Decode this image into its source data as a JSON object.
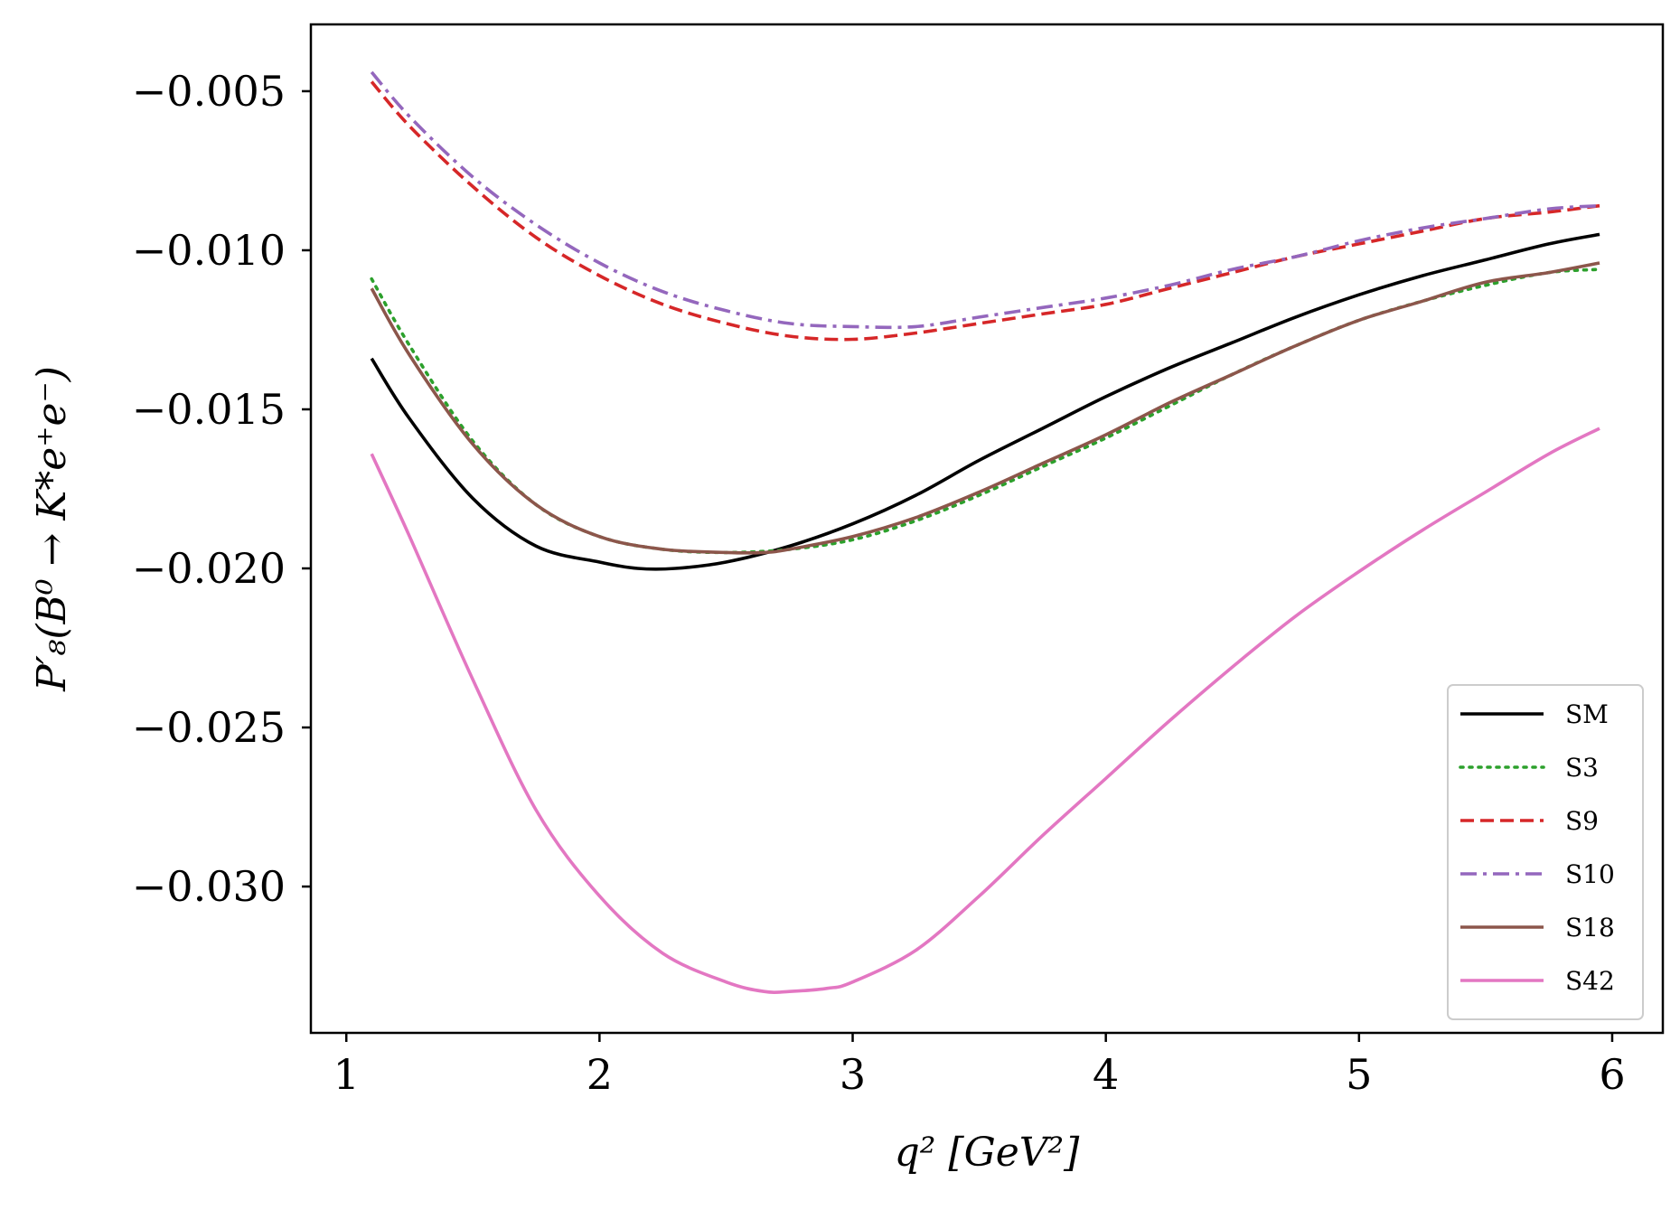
{
  "chart_data": {
    "type": "line",
    "title": "",
    "xlabel": "q² [GeV²]",
    "ylabel": "P′₈(B⁰ → K*e⁺e⁻)",
    "xlim": [
      0.86,
      6.2
    ],
    "ylim": [
      -0.0346,
      -0.0029
    ],
    "xticks": [
      1,
      2,
      3,
      4,
      5,
      6
    ],
    "xtick_labels": [
      "1",
      "2",
      "3",
      "4",
      "5",
      "6"
    ],
    "yticks": [
      -0.005,
      -0.01,
      -0.015,
      -0.02,
      -0.025,
      -0.03
    ],
    "ytick_labels": [
      "−0.005",
      "−0.010",
      "−0.015",
      "−0.020",
      "−0.025",
      "−0.030"
    ],
    "grid": false,
    "legend_position": "lower-right",
    "series": [
      {
        "name": "SM",
        "color": "#000000",
        "dash": "solid",
        "x": [
          1.1,
          1.25,
          1.5,
          1.75,
          2.0,
          2.15,
          2.3,
          2.5,
          2.75,
          3.0,
          3.25,
          3.5,
          3.75,
          4.0,
          4.25,
          4.5,
          4.75,
          5.0,
          5.25,
          5.5,
          5.75,
          5.95
        ],
        "y": [
          -0.0134,
          -0.0153,
          -0.0178,
          -0.0193,
          -0.0198,
          -0.02,
          -0.02,
          -0.0198,
          -0.0193,
          -0.0186,
          -0.0177,
          -0.0166,
          -0.0156,
          -0.0146,
          -0.0137,
          -0.0129,
          -0.0121,
          -0.0114,
          -0.0108,
          -0.0103,
          -0.0098,
          -0.0095
        ]
      },
      {
        "name": "S3",
        "color": "#2ca02c",
        "dash": "dotted",
        "x": [
          1.1,
          1.25,
          1.5,
          1.75,
          2.0,
          2.25,
          2.5,
          2.75,
          3.0,
          3.25,
          3.5,
          3.75,
          4.0,
          4.25,
          4.5,
          4.75,
          5.0,
          5.25,
          5.5,
          5.75,
          5.95
        ],
        "y": [
          -0.0109,
          -0.013,
          -0.016,
          -0.018,
          -0.019,
          -0.0194,
          -0.0195,
          -0.0194,
          -0.0191,
          -0.0185,
          -0.0177,
          -0.0168,
          -0.0159,
          -0.0149,
          -0.0139,
          -0.013,
          -0.0122,
          -0.0116,
          -0.0111,
          -0.0107,
          -0.0106
        ]
      },
      {
        "name": "S9",
        "color": "#d62728",
        "dash": "dashed",
        "x": [
          1.1,
          1.25,
          1.5,
          1.75,
          2.0,
          2.25,
          2.5,
          2.75,
          3.0,
          3.25,
          3.5,
          3.75,
          4.0,
          4.25,
          4.5,
          4.75,
          5.0,
          5.25,
          5.5,
          5.75,
          5.95
        ],
        "y": [
          -0.0047,
          -0.0061,
          -0.008,
          -0.0096,
          -0.0108,
          -0.0117,
          -0.0123,
          -0.0127,
          -0.0128,
          -0.0126,
          -0.0123,
          -0.012,
          -0.0117,
          -0.0112,
          -0.0107,
          -0.0102,
          -0.0098,
          -0.0094,
          -0.009,
          -0.0088,
          -0.0086
        ]
      },
      {
        "name": "S10",
        "color": "#9467bd",
        "dash": "dashdot",
        "x": [
          1.1,
          1.25,
          1.5,
          1.75,
          2.0,
          2.25,
          2.5,
          2.75,
          3.0,
          3.25,
          3.5,
          3.75,
          4.0,
          4.25,
          4.5,
          4.75,
          5.0,
          5.25,
          5.5,
          5.75,
          5.95
        ],
        "y": [
          -0.0044,
          -0.0058,
          -0.0077,
          -0.0092,
          -0.0104,
          -0.0113,
          -0.0119,
          -0.0123,
          -0.0124,
          -0.0124,
          -0.0121,
          -0.0118,
          -0.0115,
          -0.0111,
          -0.0106,
          -0.0102,
          -0.0097,
          -0.0093,
          -0.009,
          -0.0087,
          -0.0086
        ]
      },
      {
        "name": "S18",
        "color": "#8c564b",
        "dash": "solid",
        "x": [
          1.1,
          1.25,
          1.5,
          1.75,
          2.0,
          2.25,
          2.5,
          2.65,
          2.75,
          3.0,
          3.25,
          3.5,
          3.75,
          4.0,
          4.25,
          4.5,
          4.75,
          5.0,
          5.25,
          5.5,
          5.75,
          5.95
        ],
        "y": [
          -0.0112,
          -0.0133,
          -0.0161,
          -0.018,
          -0.019,
          -0.0194,
          -0.0195,
          -0.0195,
          -0.0194,
          -0.019,
          -0.0184,
          -0.0176,
          -0.0167,
          -0.0158,
          -0.0148,
          -0.0139,
          -0.013,
          -0.0122,
          -0.0116,
          -0.011,
          -0.0107,
          -0.0104
        ]
      },
      {
        "name": "S42",
        "color": "#e377c2",
        "dash": "solid",
        "x": [
          1.1,
          1.25,
          1.5,
          1.75,
          2.0,
          2.25,
          2.5,
          2.65,
          2.75,
          2.9,
          3.0,
          3.25,
          3.5,
          3.75,
          4.0,
          4.25,
          4.5,
          4.75,
          5.0,
          5.25,
          5.5,
          5.75,
          5.95
        ],
        "y": [
          -0.0164,
          -0.019,
          -0.0235,
          -0.0276,
          -0.0303,
          -0.0321,
          -0.033,
          -0.0333,
          -0.0333,
          -0.0332,
          -0.033,
          -0.032,
          -0.0303,
          -0.0284,
          -0.0266,
          -0.0248,
          -0.0231,
          -0.0215,
          -0.0201,
          -0.0188,
          -0.0176,
          -0.0164,
          -0.0156
        ]
      }
    ]
  }
}
